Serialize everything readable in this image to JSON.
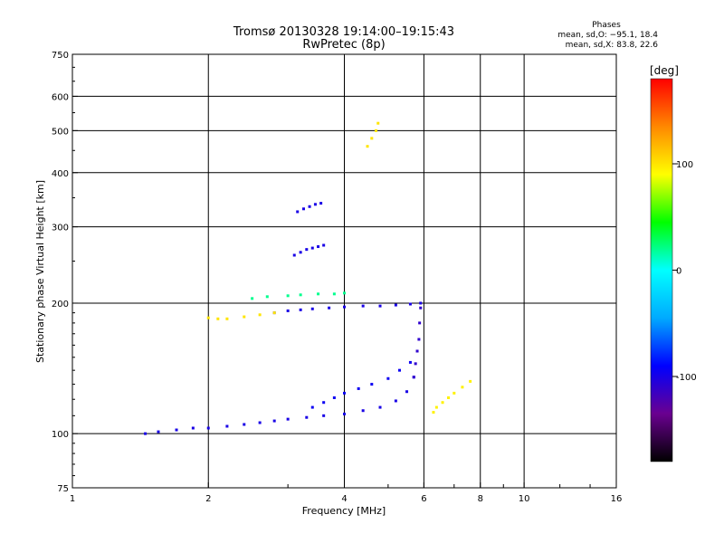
{
  "header": {
    "title_line1": "Tromsø 20130328 19:14:00–19:15:43",
    "title_line2": "RwPretec (8p)",
    "phases_title": "Phases",
    "phases_o": "mean, sd,O: −95.1, 18.4",
    "phases_x": "mean, sd,X:  83.8, 22.6"
  },
  "chart_data": {
    "type": "scatter",
    "title": "Tromsø 20130328 19:14:00–19:15:43",
    "subtitle": "RwPretec (8p)",
    "xlabel": "Frequency [MHz]",
    "ylabel": "Stationary phase Virtual Height [km]",
    "x_scale": "log",
    "y_scale": "log",
    "xlim": [
      1,
      16
    ],
    "ylim": [
      75,
      750
    ],
    "x_ticks": [
      1,
      2,
      4,
      6,
      8,
      10,
      16
    ],
    "x_tick_labels": [
      "1",
      "2",
      "4",
      "6",
      "8",
      "10",
      "16"
    ],
    "y_ticks": [
      75,
      100,
      200,
      300,
      400,
      500,
      600,
      750
    ],
    "y_tick_labels": [
      "75",
      "100",
      "200",
      "300",
      "400",
      "500",
      "600",
      "750"
    ],
    "grid": true,
    "colorbar": {
      "label": "[deg]",
      "range": [
        -180,
        180
      ],
      "ticks": [
        100,
        0,
        -100
      ],
      "tick_labels": [
        "100",
        "0",
        "-100"
      ],
      "colors": [
        "#000000",
        "#6a0090",
        "#0000ff",
        "#00aaff",
        "#00ffff",
        "#00ff00",
        "#ffff00",
        "#ff8800",
        "#ff0000"
      ]
    },
    "traces": [
      {
        "name": "",
        "phase": -100,
        "x": [
          1.45,
          1.55,
          1.7,
          1.85,
          2.0,
          2.2,
          2.4,
          2.6,
          2.8,
          3.0,
          3.3,
          3.6,
          4.0,
          4.4,
          4.8,
          5.2,
          5.5,
          5.7
        ],
        "y": [
          100,
          101,
          102,
          103,
          103,
          104,
          105,
          106,
          107,
          108,
          109,
          110,
          111,
          113,
          115,
          119,
          125,
          135
        ]
      },
      {
        "name": "",
        "phase": -110,
        "x": [
          5.7,
          5.75,
          5.8,
          5.85,
          5.87,
          5.9
        ],
        "y": [
          135,
          145,
          155,
          165,
          180,
          195
        ]
      },
      {
        "name": "",
        "phase": -95,
        "x": [
          3.4,
          3.6,
          3.8,
          4.0,
          4.3,
          4.6,
          5.0,
          5.3,
          5.6
        ],
        "y": [
          115,
          118,
          121,
          124,
          127,
          130,
          134,
          140,
          146
        ]
      },
      {
        "name": "",
        "phase": -100,
        "x": [
          2.8,
          3.0,
          3.2,
          3.4,
          3.7,
          4.0,
          4.4,
          4.8,
          5.2,
          5.6,
          5.9
        ],
        "y": [
          190,
          192,
          193,
          194,
          195,
          196,
          197,
          197,
          198,
          199,
          200
        ]
      },
      {
        "name": "",
        "phase": -100,
        "x": [
          3.1,
          3.2,
          3.3,
          3.4,
          3.5,
          3.6
        ],
        "y": [
          258,
          262,
          266,
          268,
          270,
          272
        ]
      },
      {
        "name": "",
        "phase": -100,
        "x": [
          3.15,
          3.25,
          3.35,
          3.45,
          3.55
        ],
        "y": [
          325,
          330,
          334,
          338,
          340
        ]
      },
      {
        "name": "",
        "phase": 100,
        "x": [
          4.5,
          4.6,
          4.7,
          4.75
        ],
        "y": [
          460,
          480,
          500,
          520
        ]
      },
      {
        "name": "",
        "phase": 95,
        "x": [
          6.3,
          6.4,
          6.6,
          6.8,
          7.0,
          7.3,
          7.6
        ],
        "y": [
          112,
          115,
          118,
          121,
          124,
          128,
          132
        ]
      },
      {
        "name": "",
        "phase": 100,
        "x": [
          2.0,
          2.1,
          2.2,
          2.4,
          2.6,
          2.8
        ],
        "y": [
          185,
          184,
          184,
          186,
          188,
          190
        ]
      },
      {
        "name": "",
        "phase": 20,
        "x": [
          2.5,
          2.7,
          3.0,
          3.2,
          3.5,
          3.8,
          4.0
        ],
        "y": [
          205,
          207,
          208,
          209,
          210,
          210,
          211
        ]
      }
    ]
  }
}
